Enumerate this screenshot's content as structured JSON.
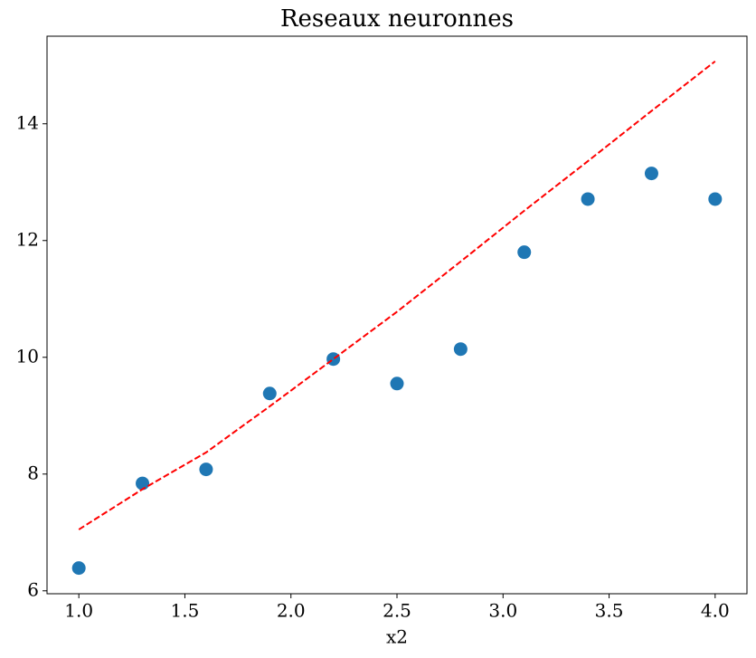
{
  "chart_data": {
    "type": "scatter",
    "title": "Reseaux neuronnes",
    "x_label": "x2",
    "x": [
      1.0,
      1.3,
      1.6,
      1.9,
      2.2,
      2.5,
      2.8,
      3.1,
      3.4,
      3.7,
      4.0
    ],
    "series": [
      {
        "type": "scatter",
        "color": "#1f77b4",
        "values": [
          6.39,
          7.84,
          8.08,
          9.38,
          9.97,
          9.55,
          10.14,
          11.8,
          12.71,
          13.15,
          12.71
        ]
      },
      {
        "type": "line",
        "color": "#ff0000",
        "dashed": true,
        "values": [
          7.05,
          7.74,
          8.37,
          9.16,
          9.97,
          10.78,
          11.64,
          12.51,
          13.36,
          14.22,
          15.07
        ]
      }
    ],
    "xlim": [
      0.85,
      4.15
    ],
    "ylim": [
      5.95,
      15.5
    ],
    "xticks": [
      {
        "value": 1.0,
        "label": "1.0"
      },
      {
        "value": 1.5,
        "label": "1.5"
      },
      {
        "value": 2.0,
        "label": "2.0"
      },
      {
        "value": 2.5,
        "label": "2.5"
      },
      {
        "value": 3.0,
        "label": "3.0"
      },
      {
        "value": 3.5,
        "label": "3.5"
      },
      {
        "value": 4.0,
        "label": "4.0"
      }
    ],
    "yticks": [
      6,
      8,
      10,
      12,
      14
    ],
    "grid": false
  }
}
